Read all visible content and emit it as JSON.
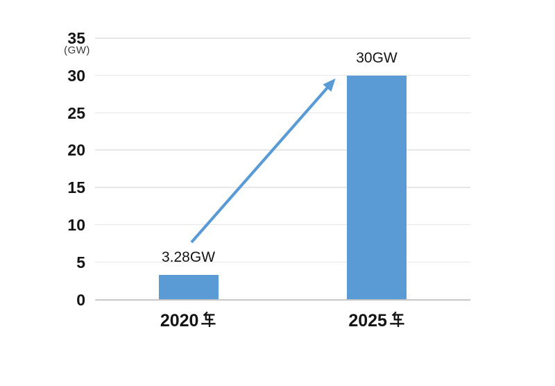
{
  "chart_data": {
    "type": "bar",
    "title": "",
    "categories": [
      "2020年",
      "2025年"
    ],
    "values": [
      3.28,
      30
    ],
    "data_labels": [
      "3.28GW",
      "30GW"
    ],
    "unit_label": "（GW）",
    "yticks": [
      0,
      5,
      10,
      15,
      20,
      25,
      30,
      35
    ],
    "ylim": [
      0,
      35
    ],
    "grid": true,
    "legend": "none",
    "bar_color": "#5B9BD5",
    "annotation": {
      "shape": "arrow",
      "meaning": "growth-from-2020-to-2025",
      "color": "#5B9BD5"
    }
  },
  "colors": {
    "background": "#FFFFFF",
    "gridline": "#E7E7E7",
    "axis_line": "#C8C8C8",
    "text": "#141414",
    "unit_text": "#3A3A3A"
  }
}
